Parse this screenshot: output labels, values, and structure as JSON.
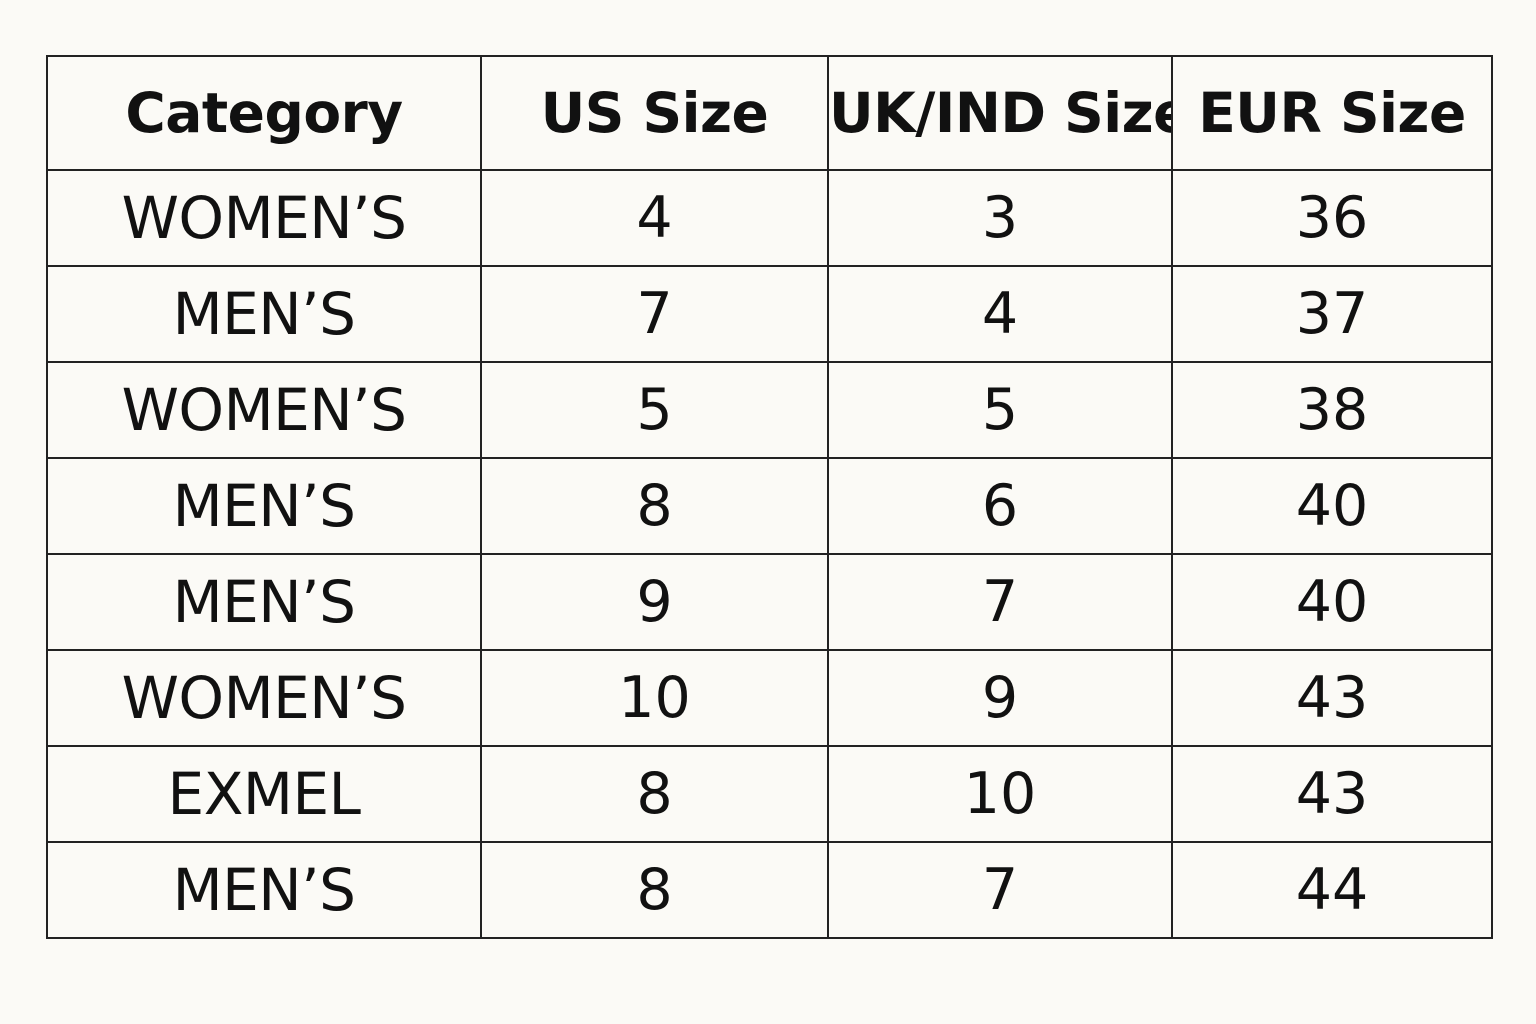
{
  "table": {
    "headers": [
      "Category",
      "US Size",
      "UK/IND Size",
      "EUR Size"
    ],
    "rows": [
      [
        "WOMEN’S",
        "4",
        "3",
        "36"
      ],
      [
        "MEN’S",
        "7",
        "4",
        "37"
      ],
      [
        "WOMEN’S",
        "5",
        "5",
        "38"
      ],
      [
        "MEN’S",
        "8",
        "6",
        "40"
      ],
      [
        "MEN’S",
        "9",
        "7",
        "40"
      ],
      [
        "WOMEN’S",
        "10",
        "9",
        "43"
      ],
      [
        "EXMEL",
        "8",
        "10",
        "43"
      ],
      [
        "MEN’S",
        "8",
        "7",
        "44"
      ]
    ]
  }
}
